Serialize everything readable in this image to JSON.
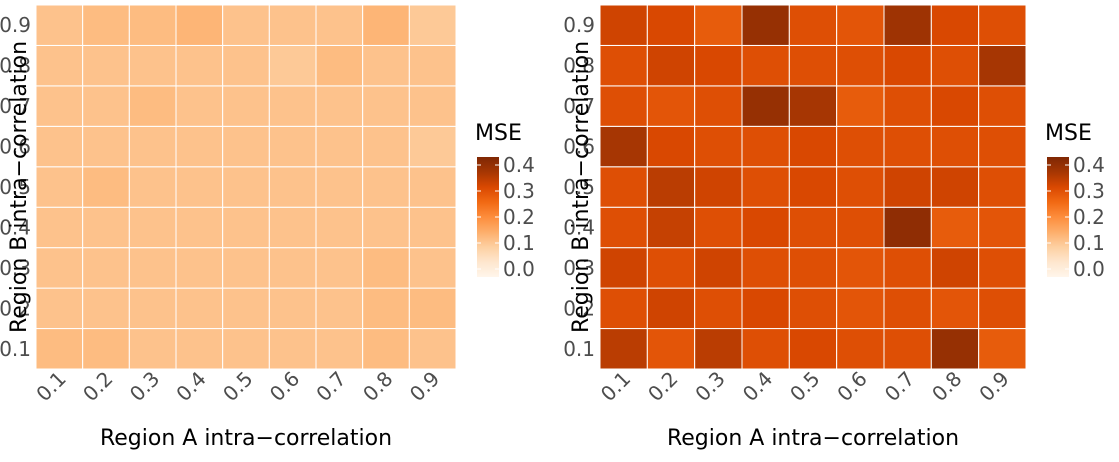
{
  "chart_data": [
    {
      "type": "heatmap",
      "x": [
        0.1,
        0.2,
        0.3,
        0.4,
        0.5,
        0.6,
        0.7,
        0.8,
        0.9
      ],
      "y": [
        0.1,
        0.2,
        0.3,
        0.4,
        0.5,
        0.6,
        0.7,
        0.8,
        0.9
      ],
      "x_tick_labels": [
        "0.1",
        "0.2",
        "0.3",
        "0.4",
        "0.5",
        "0.6",
        "0.7",
        "0.8",
        "0.9"
      ],
      "y_tick_labels": [
        "0.1",
        "0.2",
        "0.3",
        "0.4",
        "0.5",
        "0.6",
        "0.7",
        "0.8",
        "0.9"
      ],
      "xlabel": "Region A intra−correlation",
      "ylabel": "Region B intra−correlation",
      "legend_title": "MSE",
      "legend_ticks": [
        "0.4",
        "0.3",
        "0.2",
        "0.1",
        "0.0"
      ],
      "legend_placement": "right",
      "color_range": [
        0,
        0.4
      ],
      "color_low": "#fff5eb",
      "color_high": "#7f2704",
      "values": [
        [
          0.13,
          0.13,
          0.12,
          0.12,
          0.12,
          0.12,
          0.12,
          0.13,
          0.12
        ],
        [
          0.12,
          0.12,
          0.12,
          0.12,
          0.12,
          0.12,
          0.12,
          0.13,
          0.13
        ],
        [
          0.12,
          0.12,
          0.12,
          0.12,
          0.12,
          0.12,
          0.12,
          0.13,
          0.12
        ],
        [
          0.12,
          0.12,
          0.12,
          0.12,
          0.12,
          0.12,
          0.12,
          0.12,
          0.12
        ],
        [
          0.12,
          0.13,
          0.12,
          0.12,
          0.12,
          0.12,
          0.12,
          0.12,
          0.12
        ],
        [
          0.12,
          0.12,
          0.12,
          0.12,
          0.12,
          0.12,
          0.12,
          0.12,
          0.11
        ],
        [
          0.12,
          0.12,
          0.13,
          0.12,
          0.12,
          0.12,
          0.12,
          0.12,
          0.12
        ],
        [
          0.12,
          0.12,
          0.12,
          0.12,
          0.12,
          0.11,
          0.13,
          0.12,
          0.12
        ],
        [
          0.12,
          0.13,
          0.13,
          0.14,
          0.12,
          0.12,
          0.12,
          0.14,
          0.11
        ]
      ]
    },
    {
      "type": "heatmap",
      "x": [
        0.1,
        0.2,
        0.3,
        0.4,
        0.5,
        0.6,
        0.7,
        0.8,
        0.9
      ],
      "y": [
        0.1,
        0.2,
        0.3,
        0.4,
        0.5,
        0.6,
        0.7,
        0.8,
        0.9
      ],
      "x_tick_labels": [
        "0.1",
        "0.2",
        "0.3",
        "0.4",
        "0.5",
        "0.6",
        "0.7",
        "0.8",
        "0.9"
      ],
      "y_tick_labels": [
        "0.1",
        "0.2",
        "0.3",
        "0.4",
        "0.5",
        "0.6",
        "0.7",
        "0.8",
        "0.9"
      ],
      "xlabel": "Region A intra−correlation",
      "ylabel": "Region B intra−correlation",
      "legend_title": "MSE",
      "legend_ticks": [
        "0.4",
        "0.3",
        "0.2",
        "0.1",
        "0.0"
      ],
      "legend_placement": "right",
      "color_range": [
        0,
        0.4
      ],
      "color_low": "#fff5eb",
      "color_high": "#7f2704",
      "values": [
        [
          0.33,
          0.28,
          0.33,
          0.29,
          0.3,
          0.29,
          0.29,
          0.37,
          0.27
        ],
        [
          0.29,
          0.31,
          0.29,
          0.3,
          0.29,
          0.28,
          0.29,
          0.28,
          0.29
        ],
        [
          0.31,
          0.29,
          0.31,
          0.29,
          0.29,
          0.28,
          0.29,
          0.31,
          0.29
        ],
        [
          0.29,
          0.32,
          0.29,
          0.3,
          0.29,
          0.29,
          0.38,
          0.27,
          0.28
        ],
        [
          0.29,
          0.33,
          0.31,
          0.29,
          0.3,
          0.29,
          0.31,
          0.31,
          0.29
        ],
        [
          0.35,
          0.3,
          0.29,
          0.29,
          0.3,
          0.29,
          0.29,
          0.29,
          0.29
        ],
        [
          0.29,
          0.28,
          0.29,
          0.37,
          0.35,
          0.27,
          0.29,
          0.3,
          0.29
        ],
        [
          0.29,
          0.31,
          0.3,
          0.29,
          0.29,
          0.29,
          0.3,
          0.29,
          0.35
        ],
        [
          0.31,
          0.3,
          0.27,
          0.37,
          0.29,
          0.28,
          0.36,
          0.3,
          0.29
        ]
      ]
    }
  ]
}
